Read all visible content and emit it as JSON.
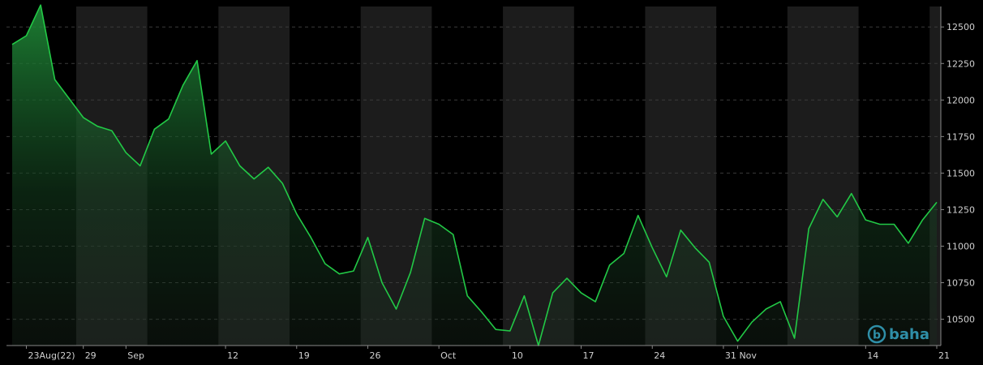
{
  "chart_data": {
    "type": "area",
    "title": "",
    "xlabel": "",
    "ylabel": "",
    "y_axis_side": "right",
    "ylim": [
      10320,
      12640
    ],
    "y_ticks": [
      10500,
      10750,
      11000,
      11250,
      11500,
      11750,
      12000,
      12250,
      12500
    ],
    "y_tick_labels": [
      "10500",
      "10750",
      "11000",
      "11250",
      "11500",
      "11750",
      "12000",
      "12250",
      "12500"
    ],
    "x_ticks": [
      {
        "label": "23Aug(22)",
        "date": "2022-08-23"
      },
      {
        "label": "29",
        "date": "2022-08-29"
      },
      {
        "label": "Sep",
        "date": "2022-09-01"
      },
      {
        "label": "12",
        "date": "2022-09-12"
      },
      {
        "label": "19",
        "date": "2022-09-19"
      },
      {
        "label": "26",
        "date": "2022-09-26"
      },
      {
        "label": "Oct",
        "date": "2022-10-03"
      },
      {
        "label": "10",
        "date": "2022-10-10"
      },
      {
        "label": "17",
        "date": "2022-10-17"
      },
      {
        "label": "24",
        "date": "2022-10-24"
      },
      {
        "label": "31",
        "date": "2022-10-31"
      },
      {
        "label": "Nov",
        "date": "2022-11-01"
      },
      {
        "label": "14",
        "date": "2022-11-14"
      },
      {
        "label": "21",
        "date": "2022-11-21"
      }
    ],
    "grid": true,
    "line_color": "#22c946",
    "series": [
      {
        "values": [
          [
            "2022-08-22",
            12380
          ],
          [
            "2022-08-23",
            12440
          ],
          [
            "2022-08-24",
            12650
          ],
          [
            "2022-08-25",
            12140
          ],
          [
            "2022-08-26",
            12010
          ],
          [
            "2022-08-29",
            11880
          ],
          [
            "2022-08-30",
            11820
          ],
          [
            "2022-08-31",
            11790
          ],
          [
            "2022-09-01",
            11640
          ],
          [
            "2022-09-02",
            11550
          ],
          [
            "2022-09-05",
            11800
          ],
          [
            "2022-09-06",
            11870
          ],
          [
            "2022-09-07",
            12100
          ],
          [
            "2022-09-08",
            12270
          ],
          [
            "2022-09-09",
            11630
          ],
          [
            "2022-09-12",
            11720
          ],
          [
            "2022-09-13",
            11550
          ],
          [
            "2022-09-14",
            11460
          ],
          [
            "2022-09-15",
            11540
          ],
          [
            "2022-09-16",
            11430
          ],
          [
            "2022-09-19",
            11220
          ],
          [
            "2022-09-20",
            11060
          ],
          [
            "2022-09-21",
            10880
          ],
          [
            "2022-09-22",
            10810
          ],
          [
            "2022-09-23",
            10830
          ],
          [
            "2022-09-26",
            11060
          ],
          [
            "2022-09-27",
            10750
          ],
          [
            "2022-09-28",
            10570
          ],
          [
            "2022-09-29",
            10820
          ],
          [
            "2022-09-30",
            11190
          ],
          [
            "2022-10-03",
            11150
          ],
          [
            "2022-10-04",
            11080
          ],
          [
            "2022-10-05",
            10660
          ],
          [
            "2022-10-06",
            10550
          ],
          [
            "2022-10-07",
            10430
          ],
          [
            "2022-10-10",
            10420
          ],
          [
            "2022-10-11",
            10660
          ],
          [
            "2022-10-12",
            10320
          ],
          [
            "2022-10-13",
            10680
          ],
          [
            "2022-10-14",
            10780
          ],
          [
            "2022-10-17",
            10680
          ],
          [
            "2022-10-18",
            10620
          ],
          [
            "2022-10-19",
            10870
          ],
          [
            "2022-10-20",
            10950
          ],
          [
            "2022-10-21",
            11210
          ],
          [
            "2022-10-24",
            10990
          ],
          [
            "2022-10-25",
            10790
          ],
          [
            "2022-10-26",
            11110
          ],
          [
            "2022-10-27",
            10990
          ],
          [
            "2022-10-28",
            10890
          ],
          [
            "2022-10-31",
            10520
          ],
          [
            "2022-11-01",
            10350
          ],
          [
            "2022-11-02",
            10480
          ],
          [
            "2022-11-03",
            10570
          ],
          [
            "2022-11-04",
            10620
          ],
          [
            "2022-11-07",
            10370
          ],
          [
            "2022-11-08",
            11120
          ],
          [
            "2022-11-09",
            11320
          ],
          [
            "2022-11-10",
            11200
          ],
          [
            "2022-11-11",
            11360
          ],
          [
            "2022-11-14",
            11180
          ],
          [
            "2022-11-15",
            11150
          ],
          [
            "2022-11-16",
            11150
          ],
          [
            "2022-11-17",
            11020
          ],
          [
            "2022-11-18",
            11180
          ],
          [
            "2022-11-21",
            11300
          ]
        ]
      }
    ]
  },
  "logo": {
    "text": "baha",
    "mark": "b",
    "color": "#2f8fa8"
  }
}
